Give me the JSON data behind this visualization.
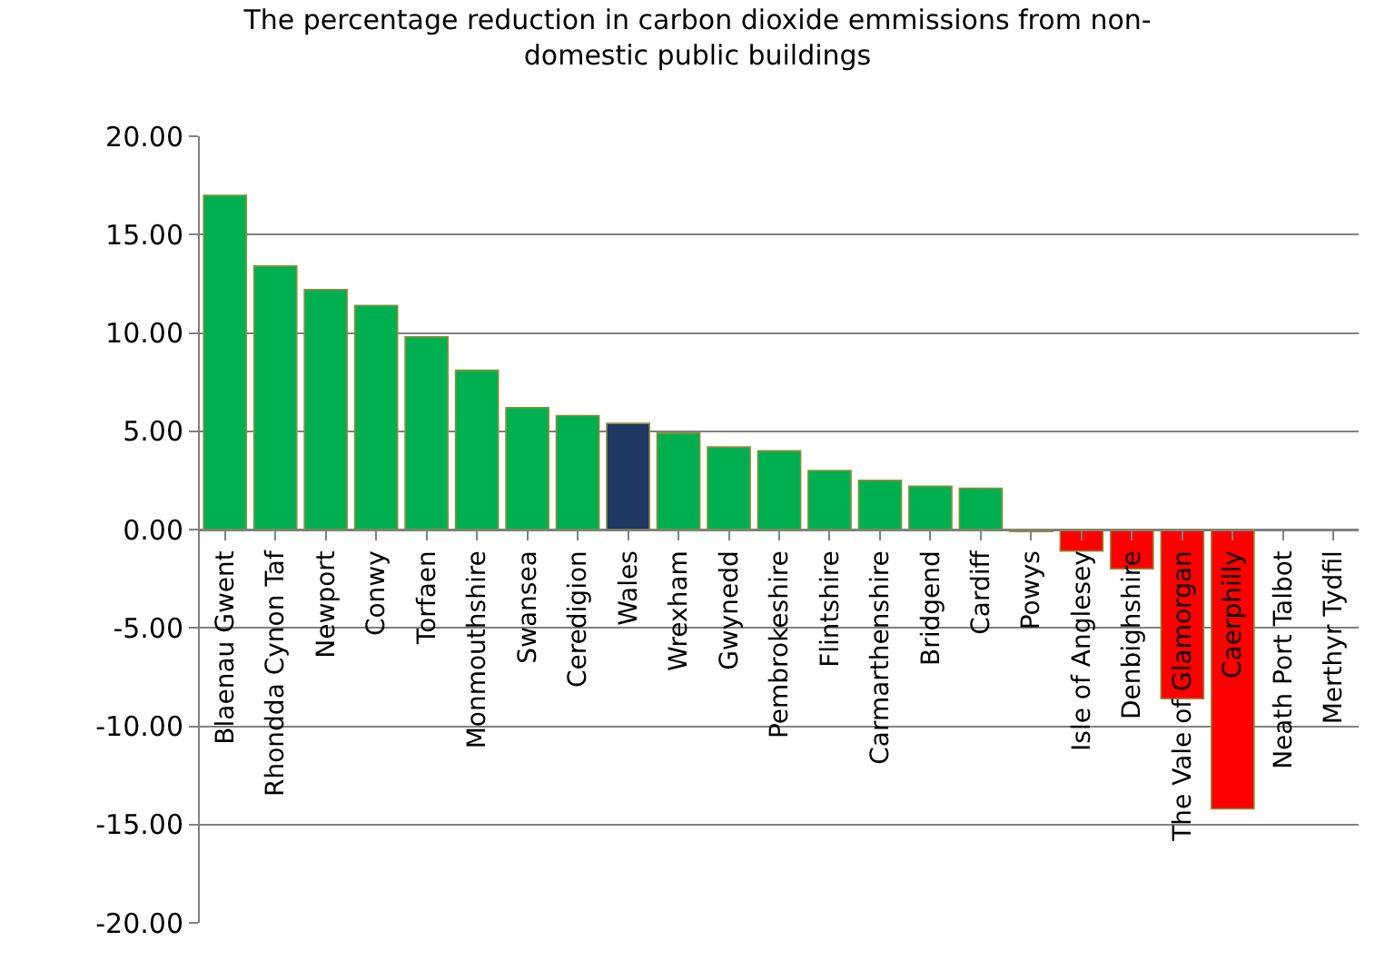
{
  "chart_data": {
    "type": "bar",
    "title": "The percentage reduction in carbon dioxide emmissions from non-\ndomestic public buildings",
    "categories": [
      "Blaenau Gwent",
      "Rhondda Cynon Taf",
      "Newport",
      "Conwy",
      "Torfaen",
      "Monmouthshire",
      "Swansea",
      "Ceredigion",
      "Wales",
      "Wrexham",
      "Gwynedd",
      "Pembrokeshire",
      "Flintshire",
      "Carmarthenshire",
      "Bridgend",
      "Cardiff",
      "Powys",
      "Isle of Anglesey",
      "Denbighshire",
      "The Vale of Glamorgan",
      "Caerphilly",
      "Neath Port Talbot",
      "Merthyr Tydfil"
    ],
    "values": [
      17.0,
      13.4,
      12.2,
      11.4,
      9.8,
      8.1,
      6.2,
      5.8,
      5.4,
      4.9,
      4.2,
      4.0,
      3.0,
      2.5,
      2.2,
      2.1,
      -0.1,
      -1.1,
      -2.0,
      -8.6,
      -14.2,
      null,
      null
    ],
    "colors": [
      "#00b050",
      "#00b050",
      "#00b050",
      "#00b050",
      "#00b050",
      "#00b050",
      "#00b050",
      "#00b050",
      "#1f3864",
      "#00b050",
      "#00b050",
      "#00b050",
      "#00b050",
      "#00b050",
      "#00b050",
      "#00b050",
      "#00b050",
      "#ff0000",
      "#ff0000",
      "#ff0000",
      "#ff0000",
      "#ff0000",
      "#ff0000"
    ],
    "ylim": [
      -20,
      20
    ],
    "yticks": [
      {
        "value": -20,
        "label": "-20.00"
      },
      {
        "value": -15,
        "label": "-15.00"
      },
      {
        "value": -10,
        "label": "-10.00"
      },
      {
        "value": -5,
        "label": "-5.00"
      },
      {
        "value": 0,
        "label": "0.00"
      },
      {
        "value": 5,
        "label": "5.00"
      },
      {
        "value": 10,
        "label": "10.00"
      },
      {
        "value": 15,
        "label": "15.00"
      },
      {
        "value": 20,
        "label": "20.00"
      }
    ],
    "grid": "y",
    "legend": false
  }
}
